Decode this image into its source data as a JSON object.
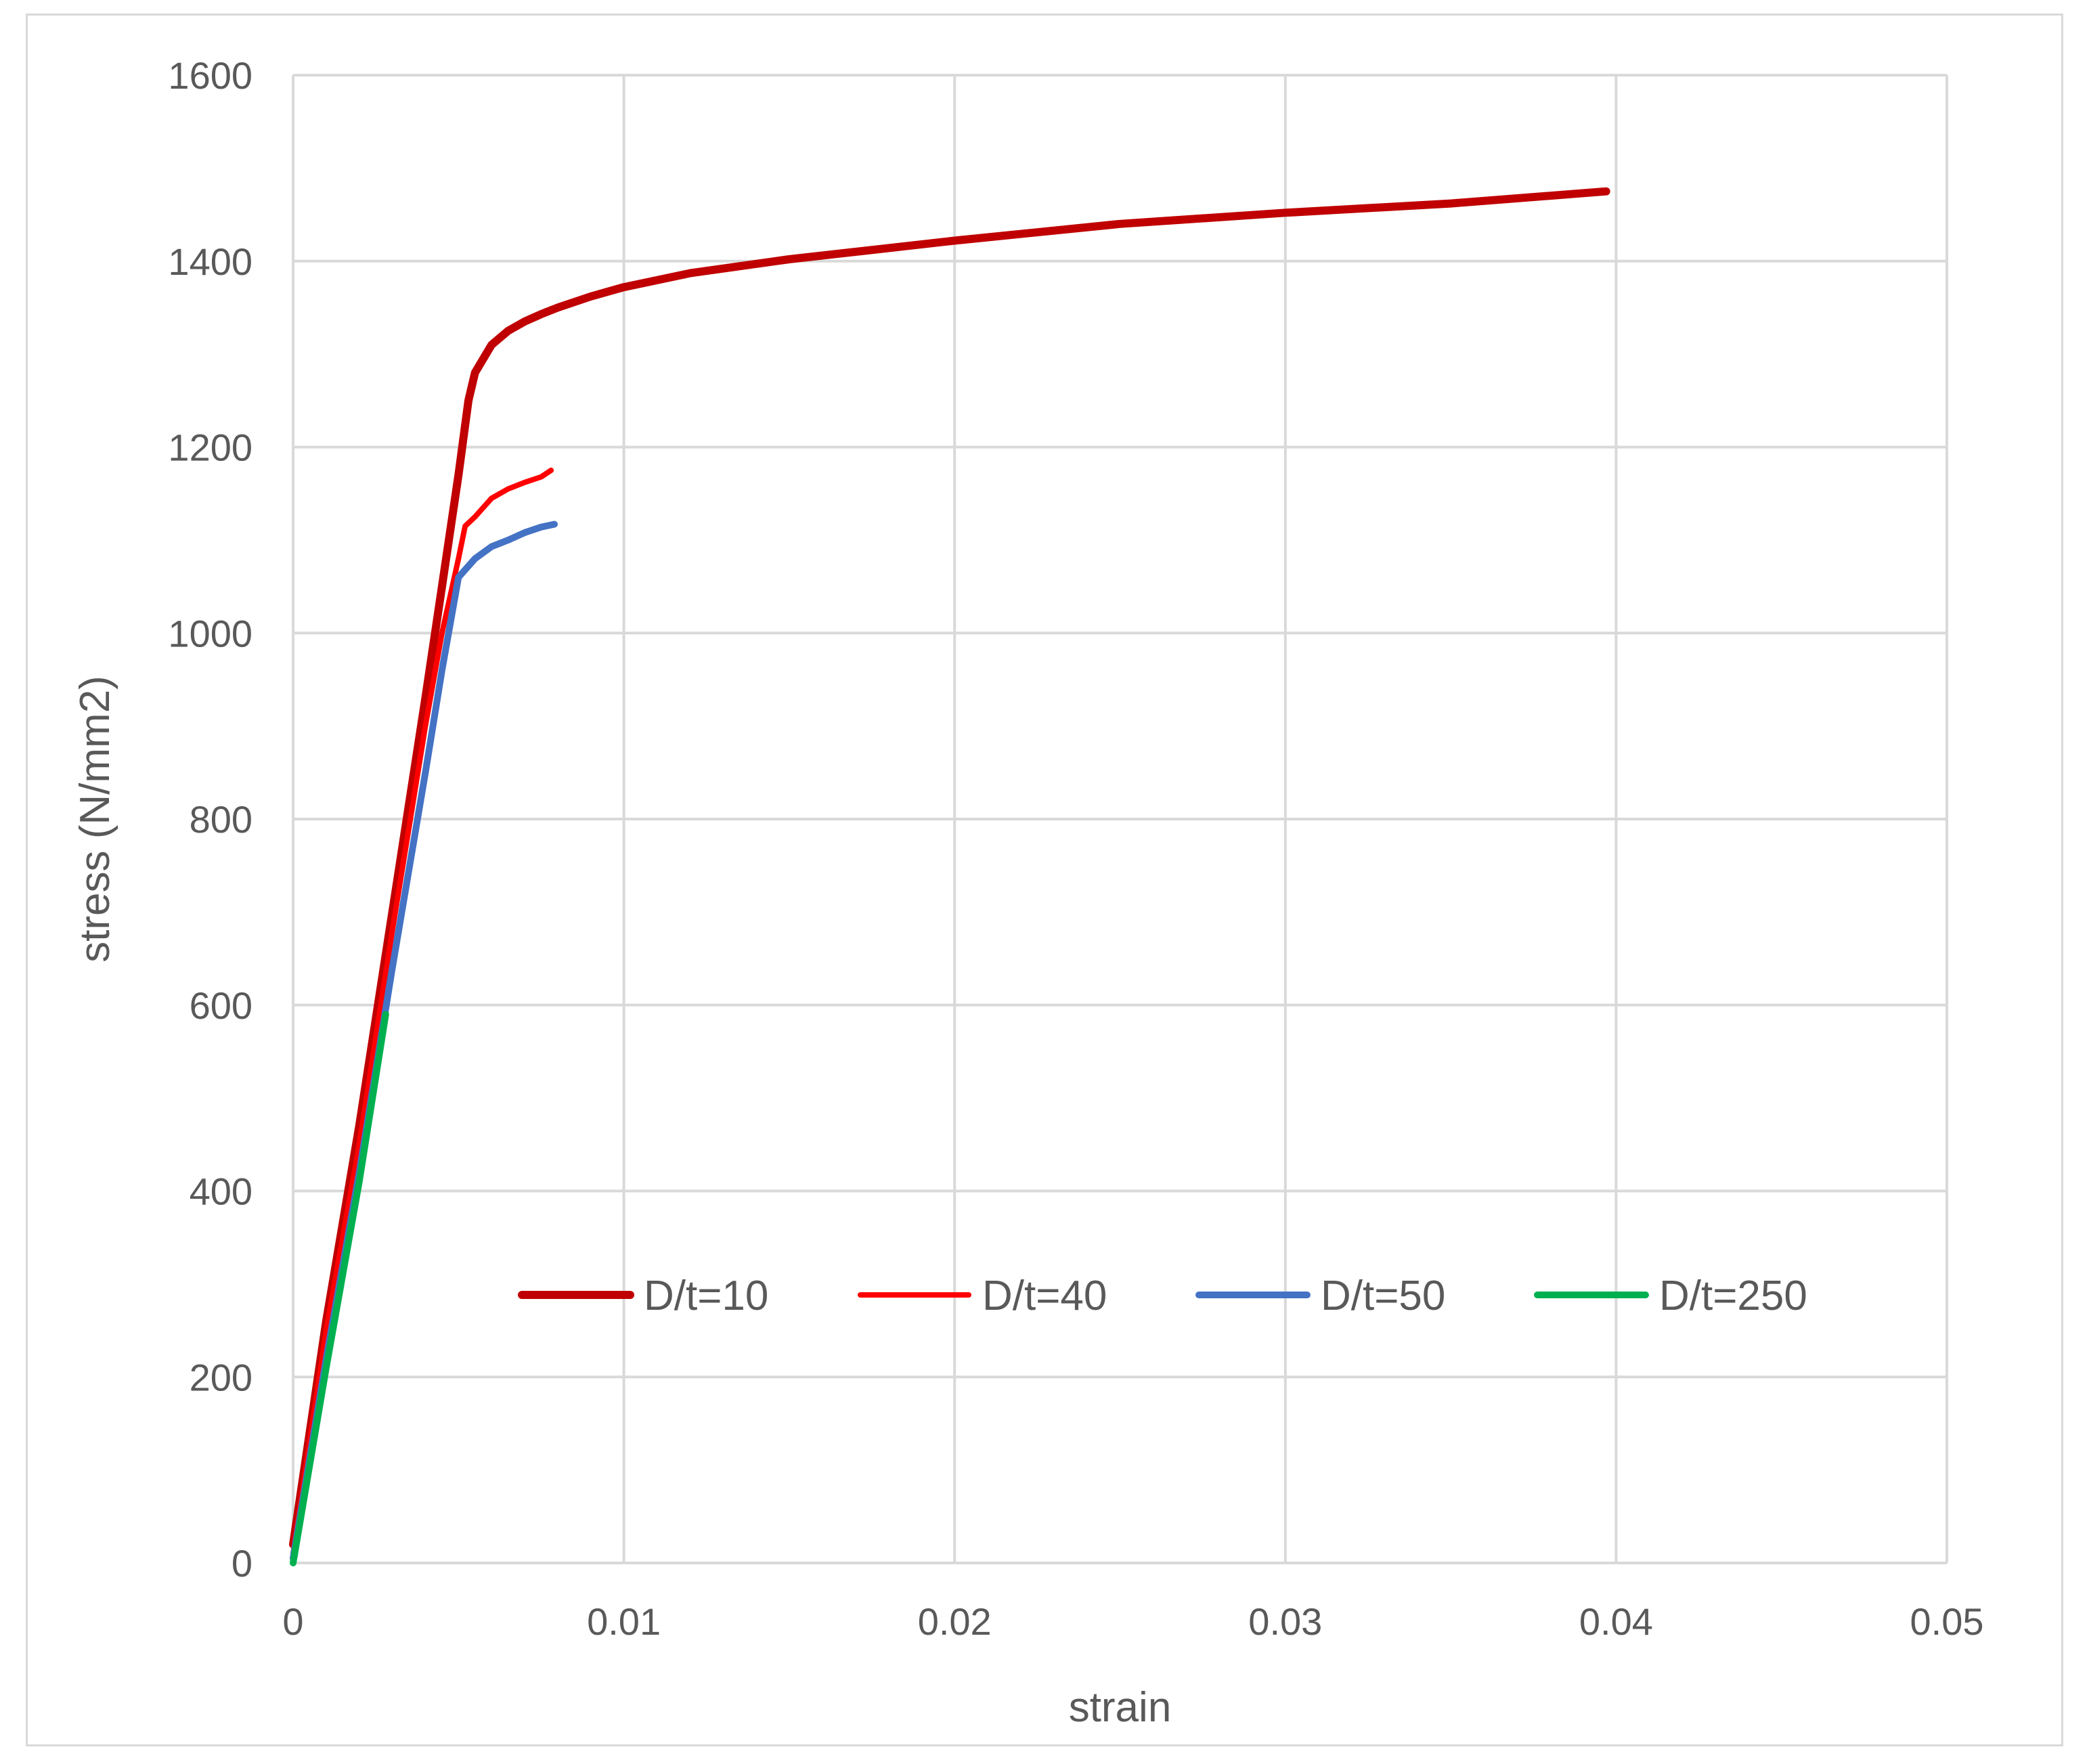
{
  "chart_data": {
    "type": "line",
    "title": "",
    "xlabel": "strain",
    "ylabel": "stress (N/mm2)",
    "xlim": [
      0,
      0.05
    ],
    "ylim": [
      0,
      1600
    ],
    "x_ticks": [
      "0",
      "0.01",
      "0.02",
      "0.03",
      "0.04",
      "0.05"
    ],
    "y_ticks": [
      "0",
      "200",
      "400",
      "600",
      "800",
      "1000",
      "1200",
      "1400",
      "1600"
    ],
    "grid": true,
    "legend_position": "inside-lower-center",
    "series": [
      {
        "name": "D/t=10",
        "color": "#c00000",
        "x": [
          0,
          0.001,
          0.002,
          0.003,
          0.004,
          0.0045,
          0.005,
          0.0053,
          0.0055,
          0.006,
          0.0065,
          0.007,
          0.0075,
          0.008,
          0.009,
          0.01,
          0.012,
          0.015,
          0.02,
          0.025,
          0.03,
          0.035,
          0.0397
        ],
        "y": [
          20,
          260,
          470,
          700,
          930,
          1050,
          1170,
          1250,
          1280,
          1310,
          1325,
          1335,
          1343,
          1350,
          1362,
          1372,
          1387,
          1402,
          1422,
          1440,
          1452,
          1462,
          1475
        ]
      },
      {
        "name": "D/t=40",
        "color": "#ff0000",
        "x": [
          0,
          0.001,
          0.002,
          0.003,
          0.004,
          0.0045,
          0.005,
          0.0052,
          0.0055,
          0.006,
          0.0065,
          0.007,
          0.0075,
          0.0078
        ],
        "y": [
          10,
          250,
          450,
          680,
          900,
          1000,
          1080,
          1115,
          1125,
          1145,
          1155,
          1162,
          1168,
          1175
        ]
      },
      {
        "name": "D/t=50",
        "color": "#4472c4",
        "x": [
          0,
          0.001,
          0.002,
          0.003,
          0.004,
          0.0045,
          0.005,
          0.0055,
          0.006,
          0.0065,
          0.007,
          0.0075,
          0.0079
        ],
        "y": [
          5,
          220,
          420,
          640,
          850,
          960,
          1060,
          1080,
          1093,
          1100,
          1108,
          1114,
          1117
        ]
      },
      {
        "name": "D/t=250",
        "color": "#00b050",
        "x": [
          0,
          0.001,
          0.002,
          0.0028
        ],
        "y": [
          0,
          210,
          410,
          590
        ]
      }
    ]
  }
}
